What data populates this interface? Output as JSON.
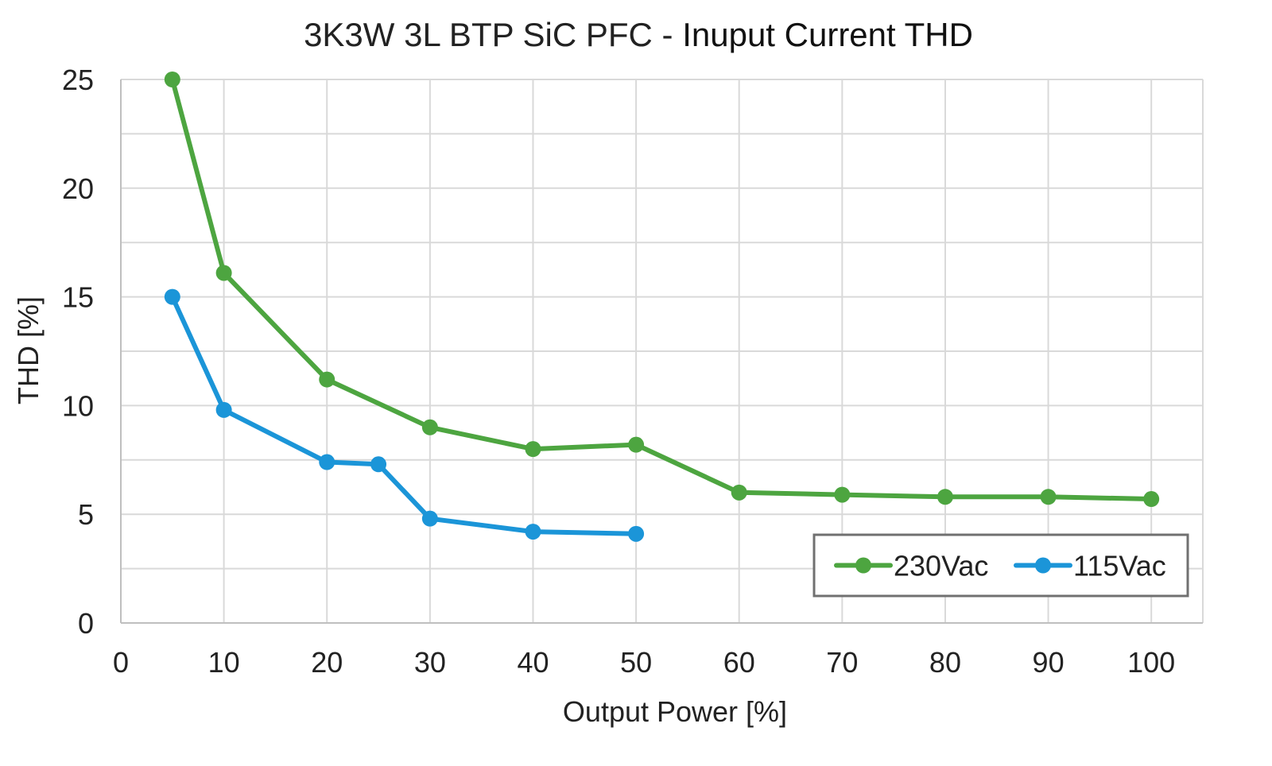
{
  "chart_data": {
    "type": "line",
    "title": {
      "prefix": "3K3W 3L BTP SiC PFC - ",
      "emphasis": "Inuput Current THD"
    },
    "xlabel": "Output Power [%]",
    "ylabel": "THD [%]",
    "xlim": [
      0,
      105
    ],
    "ylim": [
      0,
      25
    ],
    "x_ticks": [
      0,
      10,
      20,
      30,
      40,
      50,
      60,
      70,
      80,
      90,
      100
    ],
    "y_ticks": [
      0,
      5,
      10,
      15,
      20,
      25
    ],
    "y_minor_gridlines": [
      2.5,
      7.5,
      12.5,
      17.5,
      22.5
    ],
    "grid": true,
    "legend_position": "bottom-right",
    "series": [
      {
        "name": "230Vac",
        "color": "#4da540",
        "points": [
          [
            5,
            25.0
          ],
          [
            10,
            16.1
          ],
          [
            20,
            11.2
          ],
          [
            30,
            9.0
          ],
          [
            40,
            8.0
          ],
          [
            50,
            8.2
          ],
          [
            60,
            6.0
          ],
          [
            70,
            5.9
          ],
          [
            80,
            5.8
          ],
          [
            90,
            5.8
          ],
          [
            100,
            5.7
          ]
        ]
      },
      {
        "name": "115Vac",
        "color": "#1b95d8",
        "points": [
          [
            5,
            15.0
          ],
          [
            10,
            9.8
          ],
          [
            20,
            7.4
          ],
          [
            25,
            7.3
          ],
          [
            30,
            4.8
          ],
          [
            40,
            4.2
          ],
          [
            50,
            4.1
          ]
        ]
      }
    ]
  }
}
